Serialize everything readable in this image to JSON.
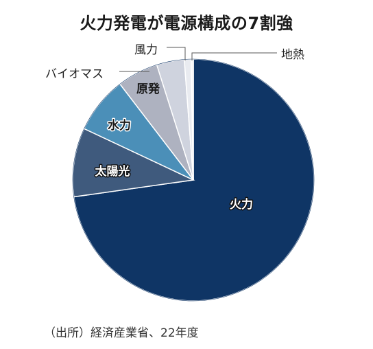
{
  "chart_data": {
    "type": "pie",
    "title": "火力発電が電源構成の7割強",
    "source": "（出所）経済産業省、22年度",
    "slices": [
      {
        "label": "火力",
        "value": 72.7,
        "color": "#0f3565",
        "text_color": "#ffffff",
        "label_style": "inside-outlined"
      },
      {
        "label": "太陽光",
        "value": 9.2,
        "color": "#3f5a7d",
        "text_color": "#ffffff",
        "label_style": "inside-outlined"
      },
      {
        "label": "水力",
        "value": 7.6,
        "color": "#4b8fb8",
        "text_color": "#1a1a1a",
        "label_style": "inside-outlined"
      },
      {
        "label": "原発",
        "value": 5.5,
        "color": "#aeb2c0",
        "text_color": "#1a1a1a",
        "label_style": "inside"
      },
      {
        "label": "バイオマス",
        "value": 3.7,
        "color": "#cfd3de",
        "text_color": "#222222",
        "label_style": "outside"
      },
      {
        "label": "風力",
        "value": 0.9,
        "color": "#e9ebf0",
        "text_color": "#222222",
        "label_style": "outside"
      },
      {
        "label": "地熱",
        "value": 0.3,
        "color": "#f6f6f8",
        "text_color": "#222222",
        "label_style": "outside"
      }
    ],
    "start_direction": "12 o'clock",
    "order": "clockwise",
    "legend": "none"
  }
}
